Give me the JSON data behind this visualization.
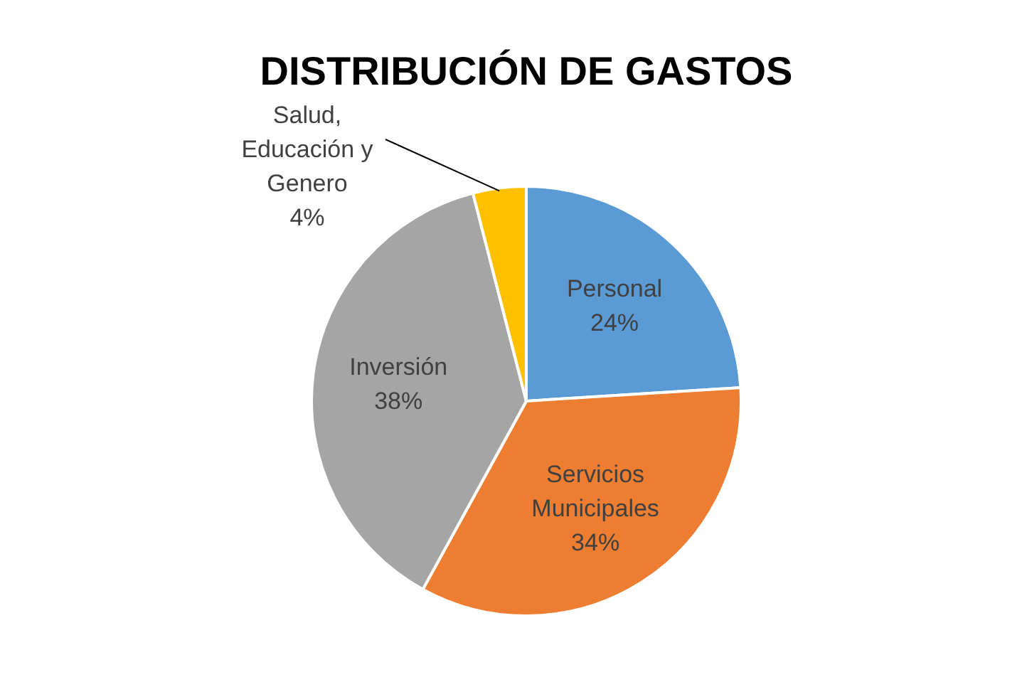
{
  "chart_data": {
    "type": "pie",
    "title": "DISTRIBUCIÓN DE GASTOS",
    "categories": [
      "Personal",
      "Servicios Municipales",
      "Inversión",
      "Salud, Educación y Genero"
    ],
    "values": [
      24,
      34,
      38,
      4
    ],
    "colors": [
      "#5b9bd5",
      "#ed7d31",
      "#a5a5a5",
      "#ffc000"
    ],
    "value_labels": [
      "24%",
      "34%",
      "38%",
      "4%"
    ],
    "legend": false
  }
}
